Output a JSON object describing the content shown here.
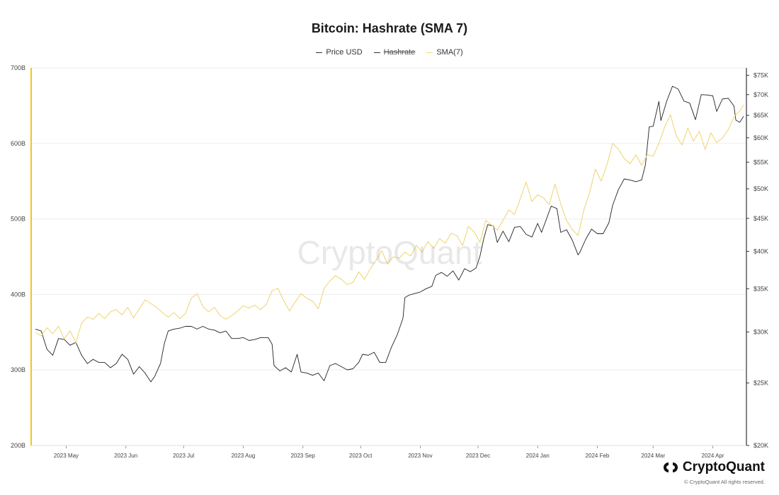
{
  "page": {
    "title": "Bitcoin: Hashrate (SMA 7)",
    "watermark": "CryptoQuant",
    "brand": "CryptoQuant",
    "copyright": "© CryptoQuant All rights reserved."
  },
  "legend": [
    {
      "label": "Price USD",
      "color": "#333333",
      "hidden": false
    },
    {
      "label": "Hashrate",
      "color": "#333333",
      "hidden": true
    },
    {
      "label": "SMA(7)",
      "color": "#f0d77a",
      "hidden": false
    }
  ],
  "colors": {
    "price": "#222222",
    "sma": "#f0d77a",
    "left_axis": "#f5c518",
    "right_axis": "#333333",
    "grid": "#eeeeee"
  },
  "chart_data": {
    "type": "line",
    "title": "Bitcoin: Hashrate (SMA 7)",
    "x_start": "2023-04-15",
    "x_end": "2024-04-17",
    "x_tick_labels": [
      "2023 May",
      "2023 Jun",
      "2023 Jul",
      "2023 Aug",
      "2023 Sep",
      "2023 Oct",
      "2023 Nov",
      "2023 Dec",
      "2024 Jan",
      "2024 Feb",
      "2024 Mar",
      "2024 Apr"
    ],
    "x_tick_dates": [
      "2023-05-01",
      "2023-06-01",
      "2023-07-01",
      "2023-08-01",
      "2023-09-01",
      "2023-10-01",
      "2023-11-01",
      "2023-12-01",
      "2024-01-01",
      "2024-02-01",
      "2024-03-01",
      "2024-04-01"
    ],
    "y_left": {
      "label": "",
      "ticks": [
        "200B",
        "300B",
        "400B",
        "500B",
        "600B",
        "700B"
      ],
      "tick_values": [
        200,
        300,
        400,
        500,
        600,
        700
      ],
      "range": [
        200,
        700
      ],
      "unit": "EH/s (B)"
    },
    "y_right": {
      "label": "",
      "scale": "log",
      "ticks": [
        "$20K",
        "$25K",
        "$30K",
        "$35K",
        "$40K",
        "$45K",
        "$50K",
        "$55K",
        "$60K",
        "$65K",
        "$70K",
        "$75K"
      ],
      "tick_values": [
        20,
        25,
        30,
        35,
        40,
        45,
        50,
        55,
        60,
        65,
        70,
        75
      ],
      "range": [
        20,
        77
      ],
      "unit": "USD thousands"
    },
    "grid": true,
    "legend_position": "top",
    "series": [
      {
        "name": "Price USD",
        "axis": "right",
        "points": [
          [
            "2023-04-15",
            30.3
          ],
          [
            "2023-04-18",
            30.1
          ],
          [
            "2023-04-21",
            28.2
          ],
          [
            "2023-04-24",
            27.6
          ],
          [
            "2023-04-27",
            29.3
          ],
          [
            "2023-04-30",
            29.2
          ],
          [
            "2023-05-03",
            28.6
          ],
          [
            "2023-05-06",
            28.9
          ],
          [
            "2023-05-09",
            27.6
          ],
          [
            "2023-05-12",
            26.8
          ],
          [
            "2023-05-15",
            27.2
          ],
          [
            "2023-05-18",
            26.9
          ],
          [
            "2023-05-21",
            26.9
          ],
          [
            "2023-05-24",
            26.4
          ],
          [
            "2023-05-27",
            26.8
          ],
          [
            "2023-05-30",
            27.7
          ],
          [
            "2023-06-02",
            27.2
          ],
          [
            "2023-06-05",
            25.8
          ],
          [
            "2023-06-08",
            26.5
          ],
          [
            "2023-06-11",
            25.9
          ],
          [
            "2023-06-14",
            25.1
          ],
          [
            "2023-06-16",
            25.6
          ],
          [
            "2023-06-19",
            26.8
          ],
          [
            "2023-06-21",
            28.8
          ],
          [
            "2023-06-23",
            30.1
          ],
          [
            "2023-06-26",
            30.3
          ],
          [
            "2023-06-29",
            30.4
          ],
          [
            "2023-07-02",
            30.6
          ],
          [
            "2023-07-05",
            30.6
          ],
          [
            "2023-07-08",
            30.3
          ],
          [
            "2023-07-11",
            30.6
          ],
          [
            "2023-07-14",
            30.3
          ],
          [
            "2023-07-17",
            30.2
          ],
          [
            "2023-07-20",
            29.9
          ],
          [
            "2023-07-23",
            30.1
          ],
          [
            "2023-07-26",
            29.3
          ],
          [
            "2023-07-29",
            29.3
          ],
          [
            "2023-08-01",
            29.4
          ],
          [
            "2023-08-04",
            29.1
          ],
          [
            "2023-08-07",
            29.2
          ],
          [
            "2023-08-10",
            29.4
          ],
          [
            "2023-08-14",
            29.4
          ],
          [
            "2023-08-16",
            28.7
          ],
          [
            "2023-08-17",
            26.6
          ],
          [
            "2023-08-20",
            26.1
          ],
          [
            "2023-08-23",
            26.4
          ],
          [
            "2023-08-26",
            26.0
          ],
          [
            "2023-08-29",
            27.7
          ],
          [
            "2023-08-31",
            26.0
          ],
          [
            "2023-09-03",
            25.9
          ],
          [
            "2023-09-06",
            25.7
          ],
          [
            "2023-09-09",
            25.9
          ],
          [
            "2023-09-12",
            25.2
          ],
          [
            "2023-09-15",
            26.6
          ],
          [
            "2023-09-18",
            26.8
          ],
          [
            "2023-09-21",
            26.5
          ],
          [
            "2023-09-24",
            26.2
          ],
          [
            "2023-09-27",
            26.3
          ],
          [
            "2023-09-30",
            26.9
          ],
          [
            "2023-10-02",
            27.7
          ],
          [
            "2023-10-05",
            27.6
          ],
          [
            "2023-10-08",
            27.9
          ],
          [
            "2023-10-11",
            26.9
          ],
          [
            "2023-10-14",
            26.9
          ],
          [
            "2023-10-17",
            28.4
          ],
          [
            "2023-10-20",
            29.7
          ],
          [
            "2023-10-23",
            31.5
          ],
          [
            "2023-10-24",
            33.9
          ],
          [
            "2023-10-26",
            34.2
          ],
          [
            "2023-10-29",
            34.4
          ],
          [
            "2023-11-01",
            34.6
          ],
          [
            "2023-11-04",
            35.0
          ],
          [
            "2023-11-07",
            35.3
          ],
          [
            "2023-11-09",
            36.7
          ],
          [
            "2023-11-12",
            37.1
          ],
          [
            "2023-11-15",
            36.6
          ],
          [
            "2023-11-18",
            37.3
          ],
          [
            "2023-11-21",
            36.1
          ],
          [
            "2023-11-24",
            37.6
          ],
          [
            "2023-11-27",
            37.2
          ],
          [
            "2023-11-30",
            37.7
          ],
          [
            "2023-12-02",
            39.3
          ],
          [
            "2023-12-04",
            41.9
          ],
          [
            "2023-12-06",
            44.0
          ],
          [
            "2023-12-09",
            43.8
          ],
          [
            "2023-12-11",
            41.3
          ],
          [
            "2023-12-14",
            43.0
          ],
          [
            "2023-12-17",
            41.4
          ],
          [
            "2023-12-20",
            43.6
          ],
          [
            "2023-12-23",
            43.7
          ],
          [
            "2023-12-26",
            42.5
          ],
          [
            "2023-12-29",
            42.1
          ],
          [
            "2024-01-01",
            44.2
          ],
          [
            "2024-01-03",
            42.8
          ],
          [
            "2024-01-08",
            47.0
          ],
          [
            "2024-01-11",
            46.6
          ],
          [
            "2024-01-13",
            42.8
          ],
          [
            "2024-01-16",
            43.2
          ],
          [
            "2024-01-19",
            41.6
          ],
          [
            "2024-01-22",
            39.5
          ],
          [
            "2024-01-23",
            39.9
          ],
          [
            "2024-01-26",
            41.8
          ],
          [
            "2024-01-29",
            43.3
          ],
          [
            "2024-02-01",
            42.6
          ],
          [
            "2024-02-04",
            42.6
          ],
          [
            "2024-02-07",
            44.3
          ],
          [
            "2024-02-09",
            47.2
          ],
          [
            "2024-02-12",
            49.9
          ],
          [
            "2024-02-15",
            51.8
          ],
          [
            "2024-02-18",
            51.6
          ],
          [
            "2024-02-21",
            51.3
          ],
          [
            "2024-02-24",
            51.6
          ],
          [
            "2024-02-26",
            54.5
          ],
          [
            "2024-02-28",
            62.4
          ],
          [
            "2024-03-01",
            62.5
          ],
          [
            "2024-03-04",
            68.3
          ],
          [
            "2024-03-05",
            63.8
          ],
          [
            "2024-03-08",
            68.3
          ],
          [
            "2024-03-11",
            72.1
          ],
          [
            "2024-03-14",
            71.4
          ],
          [
            "2024-03-17",
            68.4
          ],
          [
            "2024-03-20",
            67.9
          ],
          [
            "2024-03-23",
            64.0
          ],
          [
            "2024-03-26",
            70.0
          ],
          [
            "2024-03-29",
            69.9
          ],
          [
            "2024-04-01",
            69.7
          ],
          [
            "2024-04-03",
            65.9
          ],
          [
            "2024-04-06",
            68.9
          ],
          [
            "2024-04-09",
            69.1
          ],
          [
            "2024-04-12",
            67.2
          ],
          [
            "2024-04-13",
            63.9
          ],
          [
            "2024-04-15",
            63.4
          ],
          [
            "2024-04-17",
            64.8
          ]
        ]
      },
      {
        "name": "SMA(7)",
        "axis": "left",
        "points": [
          [
            "2023-04-15",
            350
          ],
          [
            "2023-04-18",
            345
          ],
          [
            "2023-04-21",
            356
          ],
          [
            "2023-04-24",
            348
          ],
          [
            "2023-04-27",
            358
          ],
          [
            "2023-04-30",
            341
          ],
          [
            "2023-05-03",
            352
          ],
          [
            "2023-05-06",
            336
          ],
          [
            "2023-05-09",
            362
          ],
          [
            "2023-05-12",
            370
          ],
          [
            "2023-05-15",
            367
          ],
          [
            "2023-05-18",
            375
          ],
          [
            "2023-05-21",
            368
          ],
          [
            "2023-05-24",
            377
          ],
          [
            "2023-05-27",
            380
          ],
          [
            "2023-05-30",
            373
          ],
          [
            "2023-06-02",
            383
          ],
          [
            "2023-06-05",
            369
          ],
          [
            "2023-06-08",
            381
          ],
          [
            "2023-06-11",
            393
          ],
          [
            "2023-06-14",
            388
          ],
          [
            "2023-06-17",
            383
          ],
          [
            "2023-06-20",
            376
          ],
          [
            "2023-06-23",
            370
          ],
          [
            "2023-06-26",
            376
          ],
          [
            "2023-06-29",
            368
          ],
          [
            "2023-07-02",
            375
          ],
          [
            "2023-07-05",
            395
          ],
          [
            "2023-07-08",
            401
          ],
          [
            "2023-07-11",
            384
          ],
          [
            "2023-07-14",
            377
          ],
          [
            "2023-07-17",
            383
          ],
          [
            "2023-07-20",
            372
          ],
          [
            "2023-07-23",
            367
          ],
          [
            "2023-07-26",
            372
          ],
          [
            "2023-07-29",
            378
          ],
          [
            "2023-08-01",
            385
          ],
          [
            "2023-08-04",
            382
          ],
          [
            "2023-08-07",
            386
          ],
          [
            "2023-08-10",
            380
          ],
          [
            "2023-08-13",
            387
          ],
          [
            "2023-08-16",
            405
          ],
          [
            "2023-08-19",
            408
          ],
          [
            "2023-08-22",
            392
          ],
          [
            "2023-08-25",
            378
          ],
          [
            "2023-08-28",
            390
          ],
          [
            "2023-08-31",
            401
          ],
          [
            "2023-09-03",
            395
          ],
          [
            "2023-09-06",
            391
          ],
          [
            "2023-09-09",
            381
          ],
          [
            "2023-09-12",
            408
          ],
          [
            "2023-09-15",
            418
          ],
          [
            "2023-09-18",
            425
          ],
          [
            "2023-09-21",
            420
          ],
          [
            "2023-09-24",
            413
          ],
          [
            "2023-09-27",
            416
          ],
          [
            "2023-09-30",
            430
          ],
          [
            "2023-10-03",
            420
          ],
          [
            "2023-10-06",
            434
          ],
          [
            "2023-10-09",
            445
          ],
          [
            "2023-10-12",
            458
          ],
          [
            "2023-10-15",
            440
          ],
          [
            "2023-10-18",
            450
          ],
          [
            "2023-10-21",
            448
          ],
          [
            "2023-10-24",
            456
          ],
          [
            "2023-10-27",
            451
          ],
          [
            "2023-10-30",
            465
          ],
          [
            "2023-11-02",
            456
          ],
          [
            "2023-11-05",
            470
          ],
          [
            "2023-11-08",
            461
          ],
          [
            "2023-11-11",
            474
          ],
          [
            "2023-11-14",
            468
          ],
          [
            "2023-11-17",
            481
          ],
          [
            "2023-11-20",
            478
          ],
          [
            "2023-11-23",
            465
          ],
          [
            "2023-11-26",
            490
          ],
          [
            "2023-11-29",
            483
          ],
          [
            "2023-12-02",
            469
          ],
          [
            "2023-12-05",
            498
          ],
          [
            "2023-12-08",
            492
          ],
          [
            "2023-12-11",
            485
          ],
          [
            "2023-12-14",
            498
          ],
          [
            "2023-12-17",
            512
          ],
          [
            "2023-12-20",
            506
          ],
          [
            "2023-12-23",
            527
          ],
          [
            "2023-12-26",
            549
          ],
          [
            "2023-12-29",
            523
          ],
          [
            "2024-01-01",
            532
          ],
          [
            "2024-01-04",
            528
          ],
          [
            "2024-01-07",
            519
          ],
          [
            "2024-01-10",
            546
          ],
          [
            "2024-01-13",
            520
          ],
          [
            "2024-01-16",
            498
          ],
          [
            "2024-01-19",
            486
          ],
          [
            "2024-01-22",
            478
          ],
          [
            "2024-01-25",
            512
          ],
          [
            "2024-01-28",
            535
          ],
          [
            "2024-01-31",
            566
          ],
          [
            "2024-02-03",
            550
          ],
          [
            "2024-02-06",
            572
          ],
          [
            "2024-02-09",
            600
          ],
          [
            "2024-02-12",
            592
          ],
          [
            "2024-02-15",
            580
          ],
          [
            "2024-02-18",
            573
          ],
          [
            "2024-02-21",
            585
          ],
          [
            "2024-02-24",
            571
          ],
          [
            "2024-02-27",
            585
          ],
          [
            "2024-03-01",
            583
          ],
          [
            "2024-03-04",
            600
          ],
          [
            "2024-03-07",
            622
          ],
          [
            "2024-03-10",
            638
          ],
          [
            "2024-03-13",
            610
          ],
          [
            "2024-03-16",
            598
          ],
          [
            "2024-03-19",
            620
          ],
          [
            "2024-03-22",
            603
          ],
          [
            "2024-03-25",
            616
          ],
          [
            "2024-03-28",
            592
          ],
          [
            "2024-03-31",
            614
          ],
          [
            "2024-04-03",
            601
          ],
          [
            "2024-04-06",
            607
          ],
          [
            "2024-04-09",
            618
          ],
          [
            "2024-04-12",
            635
          ],
          [
            "2024-04-15",
            643
          ],
          [
            "2024-04-17",
            651
          ]
        ]
      }
    ]
  }
}
